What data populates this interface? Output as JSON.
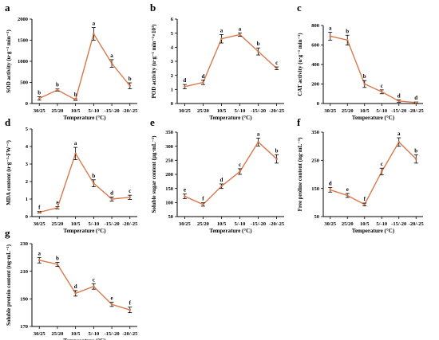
{
  "colors": {
    "line": "#D9794A",
    "axis": "#000000",
    "error": "#000000"
  },
  "categories": [
    "30/25",
    "25/20",
    "10/5",
    "5/-10",
    "-15/-20",
    "-20/-25"
  ],
  "chart_data": [
    {
      "type": "line",
      "panel": "a",
      "ylabel": "SOD activity (u·g⁻¹ min⁻¹)",
      "xlabel": "Temperature (°C)",
      "categories": [
        "30/25",
        "25/20",
        "10/5",
        "5/-10",
        "-15/-20",
        "-20/-25"
      ],
      "values": [
        120,
        320,
        90,
        1650,
        950,
        420
      ],
      "errors": [
        40,
        25,
        20,
        150,
        90,
        70
      ],
      "letters": [
        "b",
        "b",
        "b",
        "a",
        "a",
        "b"
      ],
      "ylim": [
        0,
        2000
      ],
      "yticks": [
        0,
        500,
        1000,
        1500,
        2000
      ]
    },
    {
      "type": "line",
      "panel": "b",
      "ylabel": "POD activity (u·g⁻¹ min⁻¹×10³)",
      "xlabel": "Temperature (°C)",
      "categories": [
        "30/25",
        "25/20",
        "10/5",
        "5/-10",
        "-15/-20",
        "-20/-25"
      ],
      "values": [
        1.2,
        1.5,
        4.6,
        4.9,
        3.7,
        2.5
      ],
      "errors": [
        0.15,
        0.15,
        0.3,
        0.12,
        0.25,
        0.1
      ],
      "letters": [
        "d",
        "d",
        "a",
        "a",
        "b",
        "c"
      ],
      "ylim": [
        0,
        6
      ],
      "yticks": [
        0,
        1,
        2,
        3,
        4,
        5,
        6
      ]
    },
    {
      "type": "line",
      "panel": "c",
      "ylabel": "CAT activity (u·g⁻¹ min⁻¹)",
      "xlabel": "Temperature (°C)",
      "categories": [
        "30/25",
        "25/20",
        "10/5",
        "5/-10",
        "-15/-20",
        "-20/-25"
      ],
      "values": [
        690,
        650,
        200,
        120,
        25,
        10
      ],
      "errors": [
        40,
        50,
        35,
        20,
        12,
        6
      ],
      "letters": [
        "a",
        "b",
        "b",
        "c",
        "d",
        "d"
      ],
      "ylim": [
        0,
        800
      ],
      "yticks": [
        0,
        200,
        400,
        600,
        800
      ]
    },
    {
      "type": "line",
      "panel": "d",
      "ylabel": "MDA content (u·g⁻¹·FW⁻¹)",
      "xlabel": "Temperature (°C)",
      "categories": [
        "30/25",
        "25/20",
        "10/5",
        "5/-10",
        "-15/-20",
        "-20/-25"
      ],
      "values": [
        0.25,
        0.5,
        3.6,
        1.9,
        1.0,
        1.1
      ],
      "errors": [
        0.05,
        0.06,
        0.35,
        0.2,
        0.12,
        0.12
      ],
      "letters": [
        "f",
        "e",
        "a",
        "b",
        "d",
        "c"
      ],
      "ylim": [
        0,
        5
      ],
      "yticks": [
        0,
        1,
        2,
        3,
        4,
        5
      ]
    },
    {
      "type": "line",
      "panel": "e",
      "ylabel": "Soluble sugar content (µg·mL⁻¹)",
      "xlabel": "Temperature (°C)",
      "categories": [
        "30/25",
        "25/20",
        "10/5",
        "5/-10",
        "-15/-20",
        "-20/-25"
      ],
      "values": [
        122,
        93,
        158,
        210,
        315,
        255
      ],
      "errors": [
        8,
        6,
        8,
        10,
        14,
        15
      ],
      "letters": [
        "e",
        "f",
        "d",
        "c",
        "a",
        "b"
      ],
      "ylim": [
        50,
        350
      ],
      "yticks": [
        50,
        100,
        150,
        200,
        250,
        300,
        350
      ]
    },
    {
      "type": "line",
      "panel": "f",
      "ylabel": "Free proline content (ng·mL⁻¹)",
      "xlabel": "Temperature (°C)",
      "categories": [
        "30/25",
        "25/20",
        "10/5",
        "5/-10",
        "-15/-20",
        "-20/-25"
      ],
      "values": [
        145,
        125,
        93,
        210,
        315,
        255
      ],
      "errors": [
        8,
        7,
        5,
        12,
        15,
        15
      ],
      "letters": [
        "d",
        "e",
        "f",
        "c",
        "a",
        "b"
      ],
      "ylim": [
        50,
        350
      ],
      "yticks": [
        50,
        150,
        250,
        350
      ]
    },
    {
      "type": "line",
      "panel": "g",
      "ylabel": "Soluble protein content (ng·mL⁻¹)",
      "xlabel": "Temperature (°C)",
      "categories": [
        "30/25",
        "25/20",
        "10/5",
        "5/-10",
        "-15/-20",
        "-20/-25"
      ],
      "values": [
        218,
        215,
        194,
        199,
        186,
        182
      ],
      "errors": [
        2,
        1.5,
        2,
        2,
        1.5,
        2
      ],
      "letters": [
        "a",
        "b",
        "d",
        "c",
        "e",
        "f"
      ],
      "ylim": [
        170,
        230
      ],
      "yticks": [
        170,
        190,
        210,
        230
      ]
    }
  ]
}
